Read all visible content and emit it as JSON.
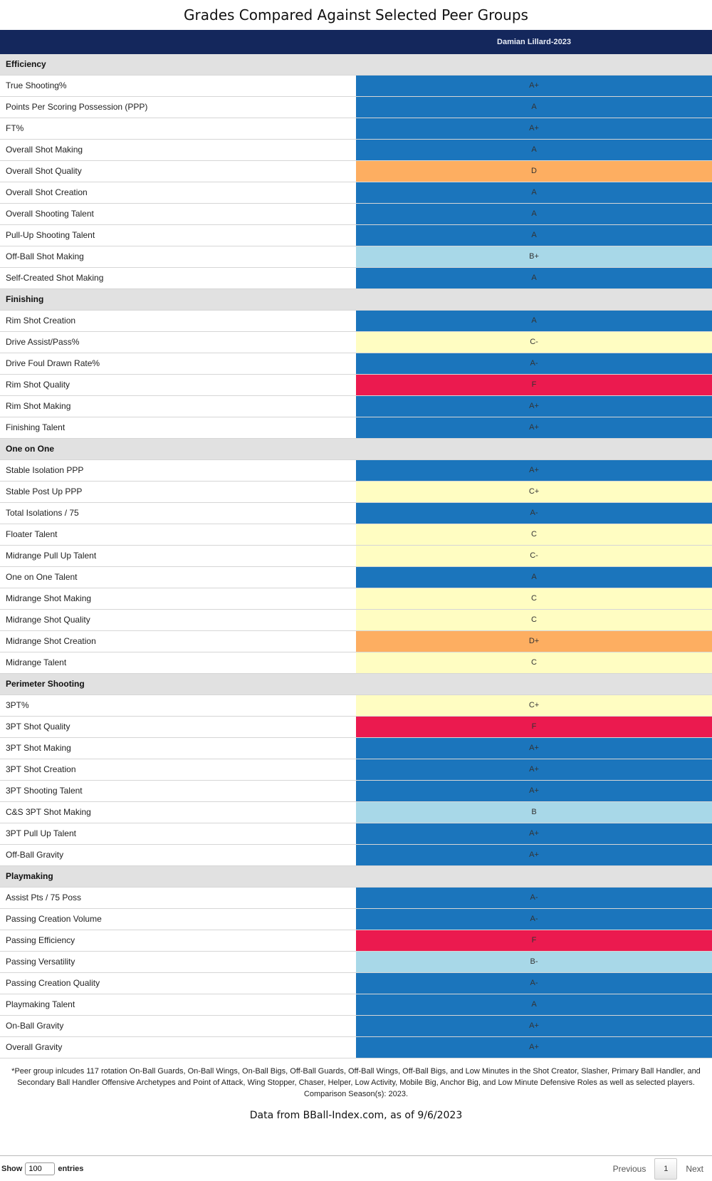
{
  "title": "Grades Compared Against Selected Peer Groups",
  "column_header": "Damian Lillard-2023",
  "colors": {
    "header_bg": "#14275c",
    "section_bg": "#e1e1e1",
    "A+": "#1b75bc",
    "A": "#1b75bc",
    "A-": "#1b75bc",
    "B+": "#a8d8e8",
    "B": "#a8d8e8",
    "B-": "#a8d8e8",
    "C+": "#fffdc2",
    "C": "#fffdc2",
    "C-": "#fffdc2",
    "D+": "#fdae61",
    "D": "#fdae61",
    "F": "#eb1a4f"
  },
  "sections": [
    {
      "name": "Efficiency",
      "rows": [
        {
          "label": "True Shooting%",
          "grade": "A+"
        },
        {
          "label": "Points Per Scoring Possession (PPP)",
          "grade": "A"
        },
        {
          "label": "FT%",
          "grade": "A+"
        },
        {
          "label": "Overall Shot Making",
          "grade": "A"
        },
        {
          "label": "Overall Shot Quality",
          "grade": "D"
        },
        {
          "label": "Overall Shot Creation",
          "grade": "A"
        },
        {
          "label": "Overall Shooting Talent",
          "grade": "A"
        },
        {
          "label": "Pull-Up Shooting Talent",
          "grade": "A"
        },
        {
          "label": "Off-Ball Shot Making",
          "grade": "B+"
        },
        {
          "label": "Self-Created Shot Making",
          "grade": "A"
        }
      ]
    },
    {
      "name": "Finishing",
      "rows": [
        {
          "label": "Rim Shot Creation",
          "grade": "A"
        },
        {
          "label": "Drive Assist/Pass%",
          "grade": "C-"
        },
        {
          "label": "Drive Foul Drawn Rate%",
          "grade": "A-"
        },
        {
          "label": "Rim Shot Quality",
          "grade": "F"
        },
        {
          "label": "Rim Shot Making",
          "grade": "A+"
        },
        {
          "label": "Finishing Talent",
          "grade": "A+"
        }
      ]
    },
    {
      "name": "One on One",
      "rows": [
        {
          "label": "Stable Isolation PPP",
          "grade": "A+"
        },
        {
          "label": "Stable Post Up PPP",
          "grade": "C+"
        },
        {
          "label": "Total Isolations / 75",
          "grade": "A-"
        },
        {
          "label": "Floater Talent",
          "grade": "C"
        },
        {
          "label": "Midrange Pull Up Talent",
          "grade": "C-"
        },
        {
          "label": "One on One Talent",
          "grade": "A"
        },
        {
          "label": "Midrange Shot Making",
          "grade": "C"
        },
        {
          "label": "Midrange Shot Quality",
          "grade": "C"
        },
        {
          "label": "Midrange Shot Creation",
          "grade": "D+"
        },
        {
          "label": "Midrange Talent",
          "grade": "C"
        }
      ]
    },
    {
      "name": "Perimeter Shooting",
      "rows": [
        {
          "label": "3PT%",
          "grade": "C+"
        },
        {
          "label": "3PT Shot Quality",
          "grade": "F"
        },
        {
          "label": "3PT Shot Making",
          "grade": "A+"
        },
        {
          "label": "3PT Shot Creation",
          "grade": "A+"
        },
        {
          "label": "3PT Shooting Talent",
          "grade": "A+"
        },
        {
          "label": "C&S 3PT Shot Making",
          "grade": "B"
        },
        {
          "label": "3PT Pull Up Talent",
          "grade": "A+"
        },
        {
          "label": "Off-Ball Gravity",
          "grade": "A+"
        }
      ]
    },
    {
      "name": "Playmaking",
      "rows": [
        {
          "label": "Assist Pts / 75 Poss",
          "grade": "A-"
        },
        {
          "label": "Passing Creation Volume",
          "grade": "A-"
        },
        {
          "label": "Passing Efficiency",
          "grade": "F"
        },
        {
          "label": "Passing Versatility",
          "grade": "B-"
        },
        {
          "label": "Passing Creation Quality",
          "grade": "A-"
        },
        {
          "label": "Playmaking Talent",
          "grade": "A"
        },
        {
          "label": "On-Ball Gravity",
          "grade": "A+"
        },
        {
          "label": "Overall Gravity",
          "grade": "A+"
        }
      ]
    }
  ],
  "footnote": "*Peer group inlcudes 117 rotation On-Ball Guards, On-Ball Wings, On-Ball Bigs, Off-Ball Guards, Off-Ball Wings, Off-Ball Bigs, and Low Minutes in the Shot Creator, Slasher, Primary Ball Handler, and Secondary Ball Handler Offensive Archetypes and Point of Attack, Wing Stopper, Chaser, Helper, Low Activity, Mobile Big, Anchor Big, and Low Minute Defensive Roles as well as selected players. Comparison Season(s): 2023.",
  "source": "Data from BBall-Index.com, as of 9/6/2023",
  "controls": {
    "show_label": "Show",
    "entries_value": "100",
    "entries_label": "entries",
    "previous_label": "Previous",
    "page_number": "1",
    "next_label": "Next"
  }
}
